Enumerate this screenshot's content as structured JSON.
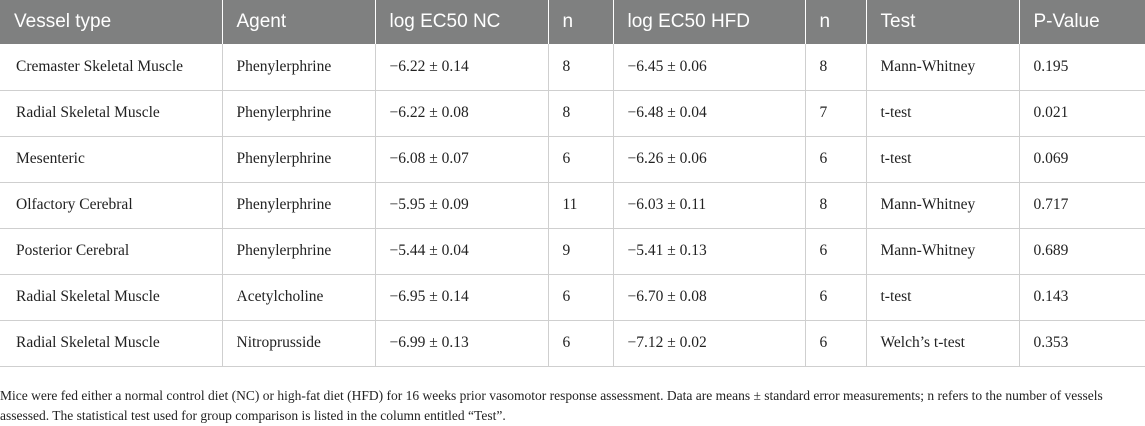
{
  "table": {
    "headers": [
      "Vessel type",
      "Agent",
      "log EC50 NC",
      "n",
      "log EC50 HFD",
      "n",
      "Test",
      "P-Value"
    ],
    "rows": [
      [
        "Cremaster Skeletal Muscle",
        "Phenylerphrine",
        "−6.22 ± 0.14",
        "8",
        "−6.45 ± 0.06",
        "8",
        "Mann-Whitney",
        "0.195"
      ],
      [
        "Radial Skeletal Muscle",
        "Phenylerphrine",
        "−6.22 ± 0.08",
        "8",
        "−6.48 ± 0.04",
        "7",
        "t-test",
        "0.021"
      ],
      [
        "Mesenteric",
        "Phenylerphrine",
        "−6.08 ± 0.07",
        "6",
        "−6.26 ± 0.06",
        "6",
        "t-test",
        "0.069"
      ],
      [
        "Olfactory Cerebral",
        "Phenylerphrine",
        "−5.95 ± 0.09",
        "11",
        "−6.03 ± 0.11",
        "8",
        "Mann-Whitney",
        "0.717"
      ],
      [
        "Posterior Cerebral",
        "Phenylerphrine",
        "−5.44 ± 0.04",
        "9",
        "−5.41 ± 0.13",
        "6",
        "Mann-Whitney",
        "0.689"
      ],
      [
        "Radial Skeletal Muscle",
        "Acetylcholine",
        "−6.95 ± 0.14",
        "6",
        "−6.70 ± 0.08",
        "6",
        "t-test",
        "0.143"
      ],
      [
        "Radial Skeletal Muscle",
        "Nitroprusside",
        "−6.99 ± 0.13",
        "6",
        "−7.12 ± 0.02",
        "6",
        "Welch’s t-test",
        "0.353"
      ]
    ]
  },
  "footnote": "Mice were fed either a normal control diet (NC) or high-fat diet (HFD) for 16 weeks prior vasomotor response assessment. Data are means ± standard error measurements; n refers to the number of vessels assessed. The statistical test used for group comparison is listed in the column entitled “Test”.",
  "colors": {
    "header_background": "#7f8080",
    "header_text": "#ffffff",
    "grid_line": "#cfcfcf"
  }
}
